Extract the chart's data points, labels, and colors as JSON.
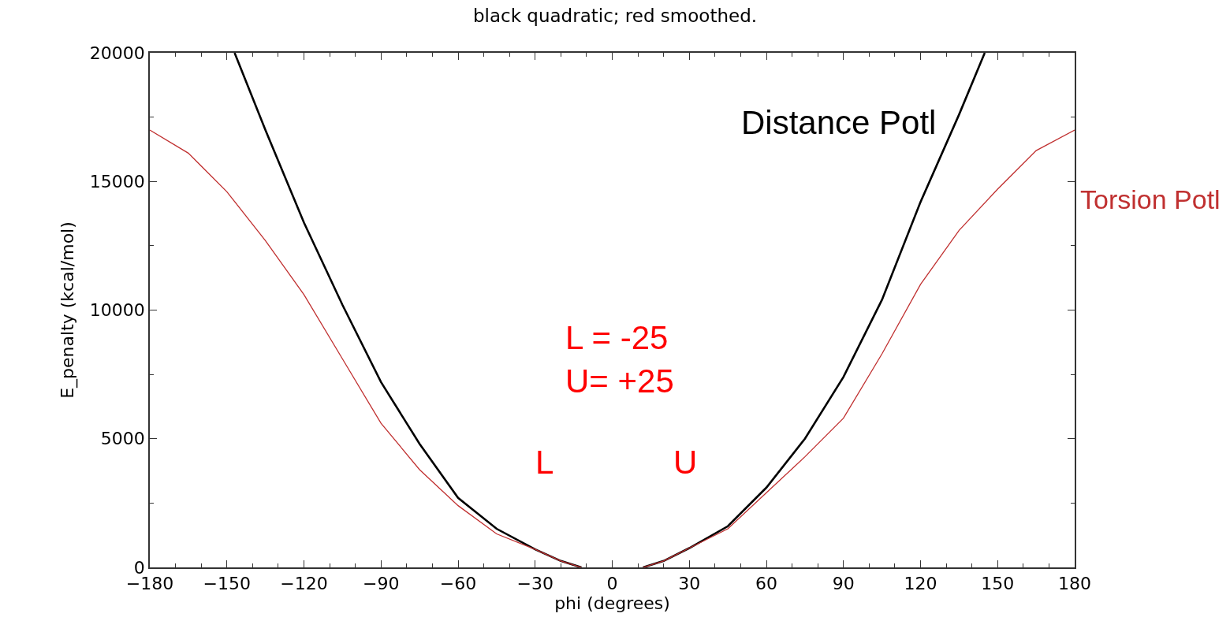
{
  "chart_data": {
    "type": "line",
    "title": "black quadratic; red smoothed.",
    "xlabel": "phi (degrees)",
    "ylabel": "E_penalty (kcal/mol)",
    "xlim": [
      -180,
      180
    ],
    "xticks": [
      -180,
      -150,
      -120,
      -90,
      -60,
      -30,
      0,
      30,
      60,
      90,
      120,
      150,
      180
    ],
    "ylim": [
      0,
      20000
    ],
    "yticks": [
      0,
      5000,
      10000,
      15000,
      20000
    ],
    "legend": false,
    "marker": "none",
    "line_style": "solid",
    "series": [
      {
        "name": "Distance Potl",
        "color": "#000000",
        "x": [
          -147,
          -135,
          -120,
          -105,
          -90,
          -75,
          -60,
          -45,
          -30,
          -20,
          -12,
          0,
          12,
          20,
          30,
          45,
          60,
          75,
          90,
          105,
          120,
          135,
          145
        ],
        "values": [
          20000,
          17000,
          13400,
          10200,
          7200,
          4800,
          2700,
          1500,
          700,
          250,
          0,
          null,
          0,
          250,
          750,
          1600,
          3100,
          5000,
          7400,
          10400,
          14200,
          17600,
          20000
        ]
      },
      {
        "name": "Torsion Potl",
        "color": "#c03030",
        "x": [
          -180,
          -165,
          -150,
          -135,
          -120,
          -105,
          -90,
          -75,
          -60,
          -45,
          -30,
          -20,
          -12,
          0,
          12,
          20,
          30,
          45,
          60,
          75,
          90,
          105,
          120,
          135,
          150,
          165,
          180
        ],
        "values": [
          17000,
          16100,
          14600,
          12700,
          10600,
          8100,
          5600,
          3800,
          2400,
          1300,
          700,
          250,
          0,
          null,
          0,
          250,
          750,
          1500,
          2900,
          4300,
          5800,
          8300,
          11000,
          13100,
          14700,
          16200,
          17000
        ]
      }
    ],
    "annotations": [
      "L = -25\nU= +25",
      "L",
      "U"
    ]
  }
}
